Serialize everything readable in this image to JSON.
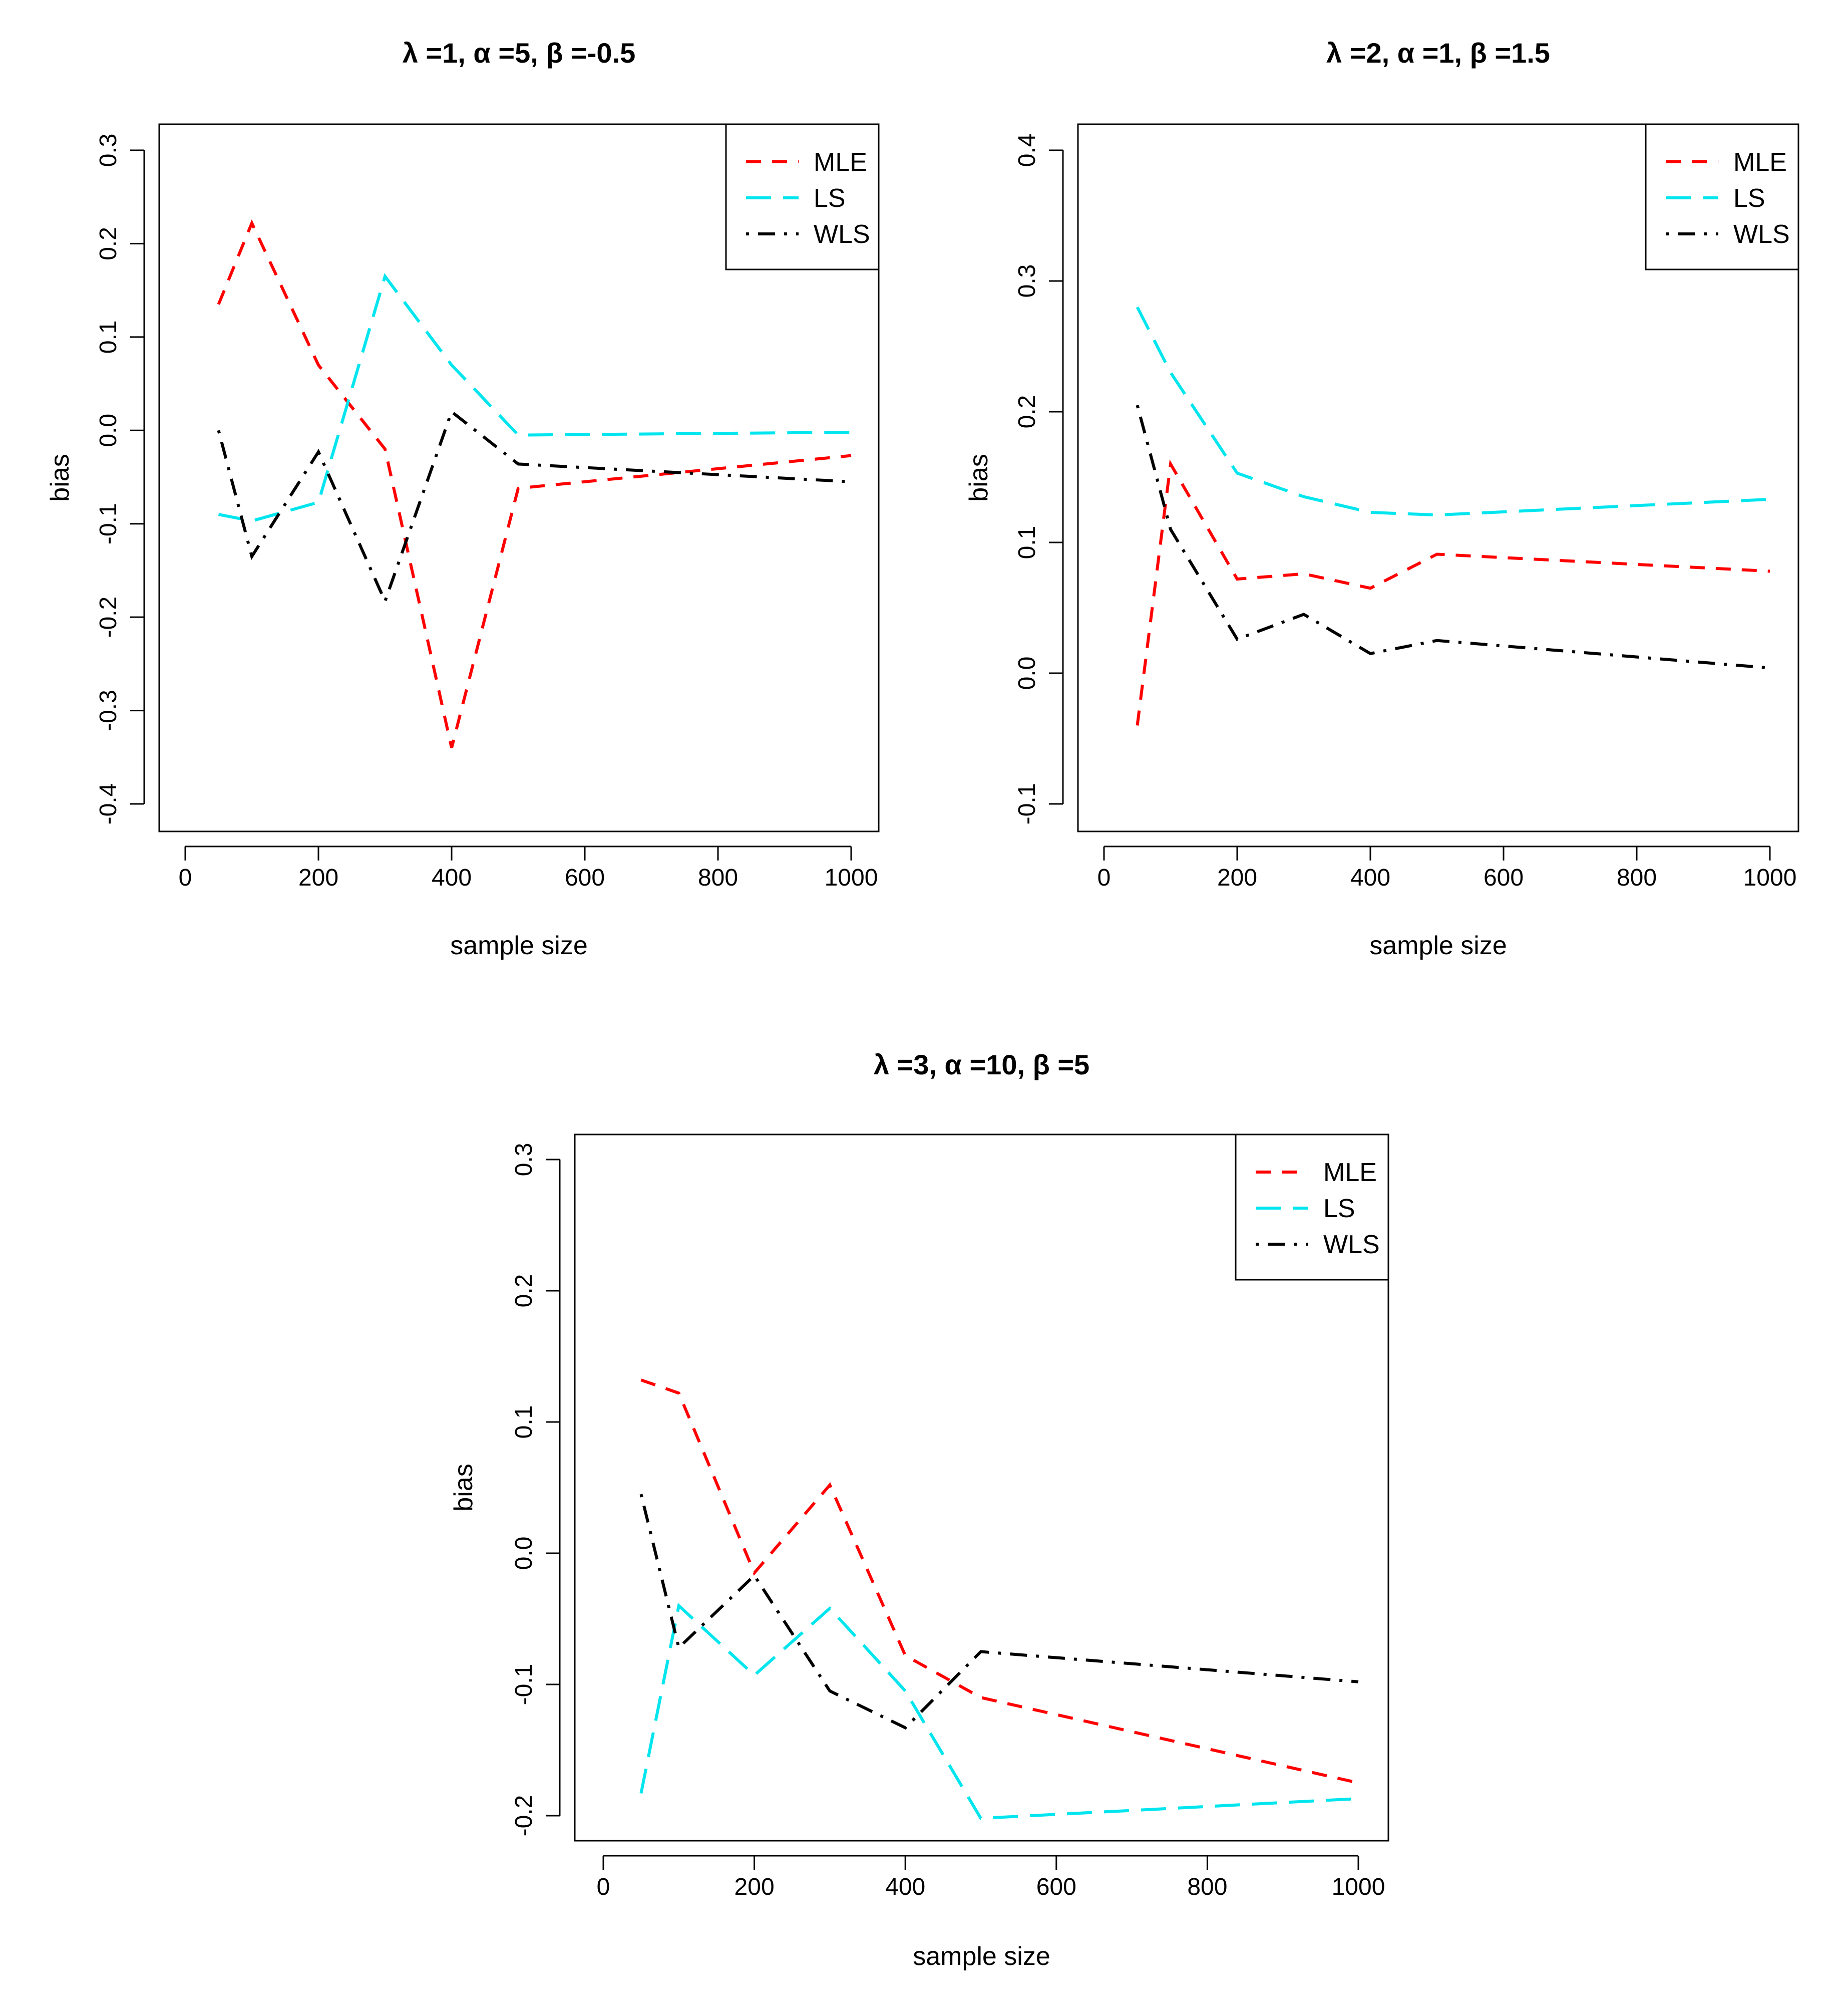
{
  "chart_data": [
    {
      "type": "line",
      "title": "λ =1, α =5, β =-0.5",
      "xlabel": "sample size",
      "ylabel": "bias",
      "xlim": [
        0,
        1000
      ],
      "ylim": [
        -0.4,
        0.3
      ],
      "xticks": [
        0,
        200,
        400,
        600,
        800,
        1000
      ],
      "yticks": [
        -0.4,
        -0.3,
        -0.2,
        -0.1,
        0.0,
        0.1,
        0.2,
        0.3
      ],
      "ytick_labels": [
        "-0.4",
        "-0.3",
        "-0.2",
        "-0.1",
        "0.0",
        "0.1",
        "0.2",
        "0.3"
      ],
      "legend_position": "top-right",
      "x": [
        50,
        100,
        200,
        300,
        400,
        500,
        1000
      ],
      "series": [
        {
          "name": "MLE",
          "color": "#ff0000",
          "dash": "short",
          "values": [
            0.135,
            0.222,
            0.07,
            -0.02,
            -0.34,
            -0.062,
            -0.027
          ]
        },
        {
          "name": "LS",
          "color": "#00e5ee",
          "dash": "long",
          "values": [
            -0.09,
            -0.097,
            -0.077,
            0.165,
            0.07,
            -0.005,
            -0.002
          ]
        },
        {
          "name": "WLS",
          "color": "#000000",
          "dash": "dotdash",
          "values": [
            0.0,
            -0.135,
            -0.023,
            -0.183,
            0.02,
            -0.036,
            -0.055
          ]
        }
      ]
    },
    {
      "type": "line",
      "title": "λ =2, α =1, β =1.5",
      "xlabel": "sample size",
      "ylabel": "bias",
      "xlim": [
        0,
        1000
      ],
      "ylim": [
        -0.1,
        0.4
      ],
      "xticks": [
        0,
        200,
        400,
        600,
        800,
        1000
      ],
      "yticks": [
        -0.1,
        0.0,
        0.1,
        0.2,
        0.3,
        0.4
      ],
      "ytick_labels": [
        "-0.1",
        "0.0",
        "0.1",
        "0.2",
        "0.3",
        "0.4"
      ],
      "legend_position": "top-right",
      "x": [
        50,
        100,
        200,
        300,
        400,
        500,
        1000
      ],
      "series": [
        {
          "name": "MLE",
          "color": "#ff0000",
          "dash": "short",
          "values": [
            -0.04,
            0.16,
            0.072,
            0.076,
            0.065,
            0.091,
            0.078
          ]
        },
        {
          "name": "LS",
          "color": "#00e5ee",
          "dash": "long",
          "values": [
            0.28,
            0.23,
            0.153,
            0.135,
            0.123,
            0.121,
            0.133
          ]
        },
        {
          "name": "WLS",
          "color": "#000000",
          "dash": "dotdash",
          "values": [
            0.205,
            0.11,
            0.026,
            0.045,
            0.015,
            0.025,
            0.004
          ]
        }
      ]
    },
    {
      "type": "line",
      "title": "λ =3, α =10, β =5",
      "xlabel": "sample size",
      "ylabel": "bias",
      "xlim": [
        0,
        1000
      ],
      "ylim": [
        -0.2,
        0.3
      ],
      "xticks": [
        0,
        200,
        400,
        600,
        800,
        1000
      ],
      "yticks": [
        -0.2,
        -0.1,
        0.0,
        0.1,
        0.2,
        0.3
      ],
      "ytick_labels": [
        "-0.2",
        "-0.1",
        "0.0",
        "0.1",
        "0.2",
        "0.3"
      ],
      "legend_position": "top-right",
      "x": [
        50,
        100,
        200,
        300,
        400,
        500,
        1000
      ],
      "series": [
        {
          "name": "MLE",
          "color": "#ff0000",
          "dash": "short",
          "values": [
            0.132,
            0.122,
            -0.015,
            0.052,
            -0.078,
            -0.11,
            -0.175
          ]
        },
        {
          "name": "LS",
          "color": "#00e5ee",
          "dash": "long",
          "values": [
            -0.183,
            -0.04,
            -0.093,
            -0.042,
            -0.105,
            -0.202,
            -0.187
          ]
        },
        {
          "name": "WLS",
          "color": "#000000",
          "dash": "dotdash",
          "values": [
            0.045,
            -0.072,
            -0.017,
            -0.105,
            -0.133,
            -0.075,
            -0.098
          ]
        }
      ]
    }
  ]
}
